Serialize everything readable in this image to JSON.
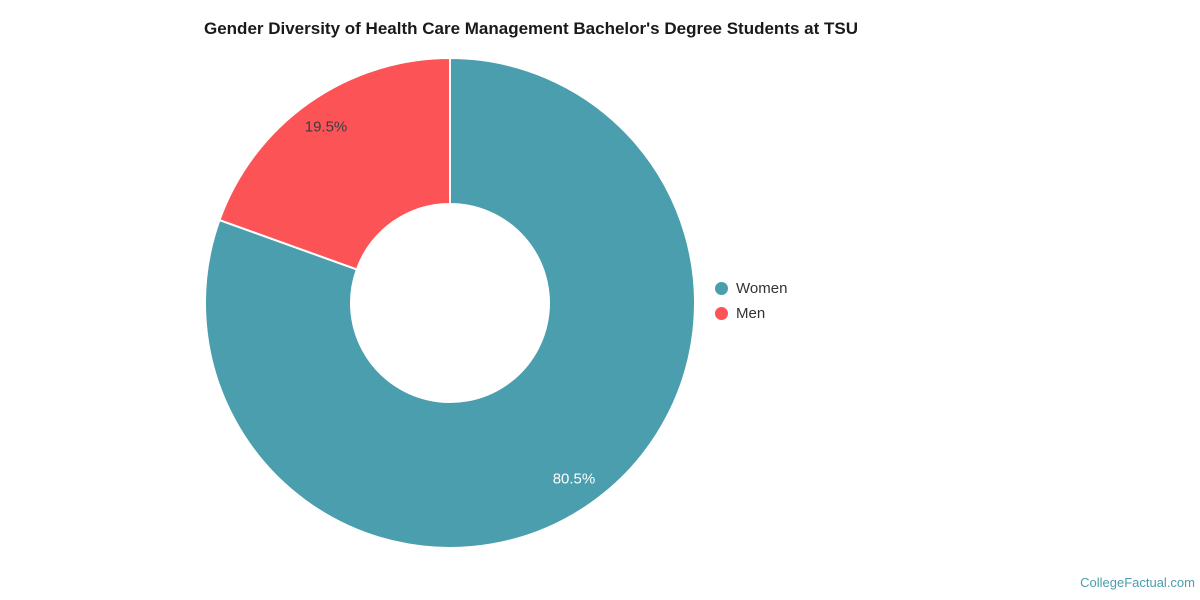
{
  "chart_data": {
    "type": "pie",
    "donut": true,
    "title": "Gender Diversity of Health Care Management Bachelor's Degree Students at TSU",
    "legend_position": "right",
    "categories": [
      "Women",
      "Men"
    ],
    "values": [
      80.5,
      19.5
    ],
    "series": [
      {
        "name": "Women",
        "value": 80.5,
        "label": "80.5%",
        "color": "#4a9eae",
        "label_color": "#ffffff"
      },
      {
        "name": "Men",
        "value": 19.5,
        "label": "19.5%",
        "color": "#fc5356",
        "label_color": "#333f48"
      }
    ]
  },
  "watermark": "CollegeFactual.com"
}
